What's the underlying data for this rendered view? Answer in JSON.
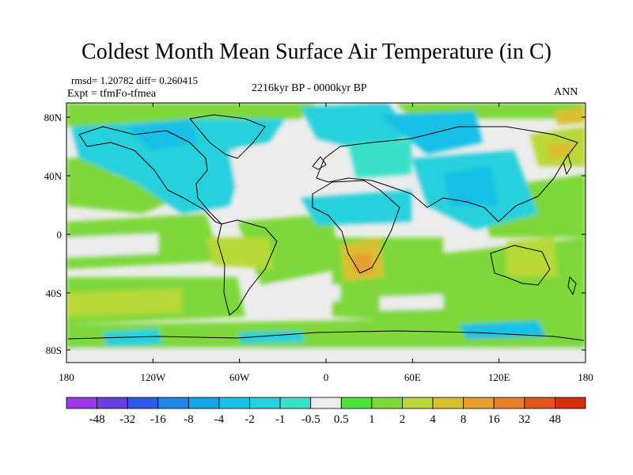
{
  "header": {
    "title": "Coldest Month Mean Surface Air Temperature (in C)",
    "stats": "rmsd= 1.20782  diff= 0.260415",
    "experiment": "Expt = tfmFo-tfmea",
    "period": "2216kyr BP - 0000kyr BP",
    "season": "ANN"
  },
  "axes": {
    "lat_ticks": [
      "80N",
      "40N",
      "0",
      "40S",
      "80S"
    ],
    "lon_ticks": [
      "180",
      "120W",
      "60W",
      "0",
      "60E",
      "120E",
      "180"
    ]
  },
  "colorbar": {
    "colors": [
      "#9a38e8",
      "#6a3fe0",
      "#2f59e6",
      "#1f86e6",
      "#12a6e6",
      "#18c0e6",
      "#27d0dc",
      "#3ae0c8",
      "#ececec",
      "#4ee03a",
      "#7ed83a",
      "#b8d838",
      "#d8c030",
      "#e8a030",
      "#e88028",
      "#e05520",
      "#d82e10"
    ],
    "labels": [
      "-48",
      "-32",
      "-16",
      "-8",
      "-4",
      "-2",
      "-1",
      "-0.5",
      "0.5",
      "1",
      "2",
      "4",
      "8",
      "16",
      "32",
      "48"
    ]
  }
}
